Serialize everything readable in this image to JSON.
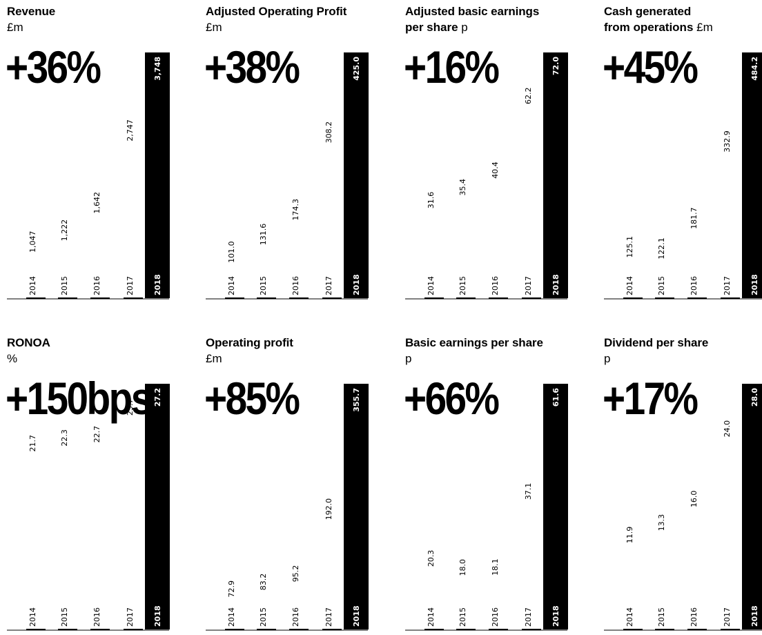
{
  "chart_data": [
    {
      "type": "bar",
      "title": "Revenue",
      "unit": "£m",
      "headline": "+36%",
      "categories": [
        "2014",
        "2015",
        "2016",
        "2017",
        "2018"
      ],
      "values": [
        1047,
        1222,
        1642,
        2747,
        3748
      ],
      "value_labels": [
        "1,047",
        "1,222",
        "1,642",
        "2,747",
        "3,748"
      ],
      "highlight": "2018"
    },
    {
      "type": "bar",
      "title": "Adjusted Operating Profit",
      "unit": "£m",
      "headline": "+38%",
      "categories": [
        "2014",
        "2015",
        "2016",
        "2017",
        "2018"
      ],
      "values": [
        101.0,
        131.6,
        174.3,
        308.2,
        425.0
      ],
      "value_labels": [
        "101.0",
        "131.6",
        "174.3",
        "308.2",
        "425.0"
      ],
      "highlight": "2018"
    },
    {
      "type": "bar",
      "title": "Adjusted basic earnings",
      "title_line2": "per share",
      "unit": "p",
      "headline": "+16%",
      "categories": [
        "2014",
        "2015",
        "2016",
        "2017",
        "2018"
      ],
      "values": [
        31.6,
        35.4,
        40.4,
        62.2,
        72.0
      ],
      "value_labels": [
        "31.6",
        "35.4",
        "40.4",
        "62.2",
        "72.0"
      ],
      "highlight": "2018"
    },
    {
      "type": "bar",
      "title": "Cash generated",
      "title_line2": "from operations",
      "unit": "£m",
      "headline": "+45%",
      "categories": [
        "2014",
        "2015",
        "2016",
        "2017",
        "2018"
      ],
      "values": [
        125.1,
        122.1,
        181.7,
        332.9,
        484.2
      ],
      "value_labels": [
        "125.1",
        "122.1",
        "181.7",
        "332.9",
        "484.2"
      ],
      "highlight": "2018"
    },
    {
      "type": "bar",
      "title": "RONOA",
      "unit": "%",
      "headline": "+150bps",
      "categories": [
        "2014",
        "2015",
        "2016",
        "2017",
        "2018"
      ],
      "values": [
        21.7,
        22.3,
        22.7,
        25.7,
        27.2
      ],
      "value_labels": [
        "21.7",
        "22.3",
        "22.7",
        "25.7",
        "27.2"
      ],
      "highlight": "2018"
    },
    {
      "type": "bar",
      "title": "Operating profit",
      "unit": "£m",
      "headline": "+85%",
      "categories": [
        "2014",
        "2015",
        "2016",
        "2017",
        "2018"
      ],
      "values": [
        72.9,
        83.2,
        95.2,
        192.0,
        355.7
      ],
      "value_labels": [
        "72.9",
        "83.2",
        "95.2",
        "192.0",
        "355.7"
      ],
      "highlight": "2018"
    },
    {
      "type": "bar",
      "title": "Basic earnings per share",
      "unit": "p",
      "headline": "+66%",
      "categories": [
        "2014",
        "2015",
        "2016",
        "2017",
        "2018"
      ],
      "values": [
        20.3,
        18.0,
        18.1,
        37.1,
        61.6
      ],
      "value_labels": [
        "20.3",
        "18.0",
        "18.1",
        "37.1",
        "61.6"
      ],
      "highlight": "2018"
    },
    {
      "type": "bar",
      "title": "Dividend per share",
      "unit": "p",
      "headline": "+17%",
      "categories": [
        "2014",
        "2015",
        "2016",
        "2017",
        "2018"
      ],
      "values": [
        11.9,
        13.3,
        16.0,
        24.0,
        28.0
      ],
      "value_labels": [
        "11.9",
        "13.3",
        "16.0",
        "24.0",
        "28.0"
      ],
      "highlight": "2018"
    }
  ]
}
